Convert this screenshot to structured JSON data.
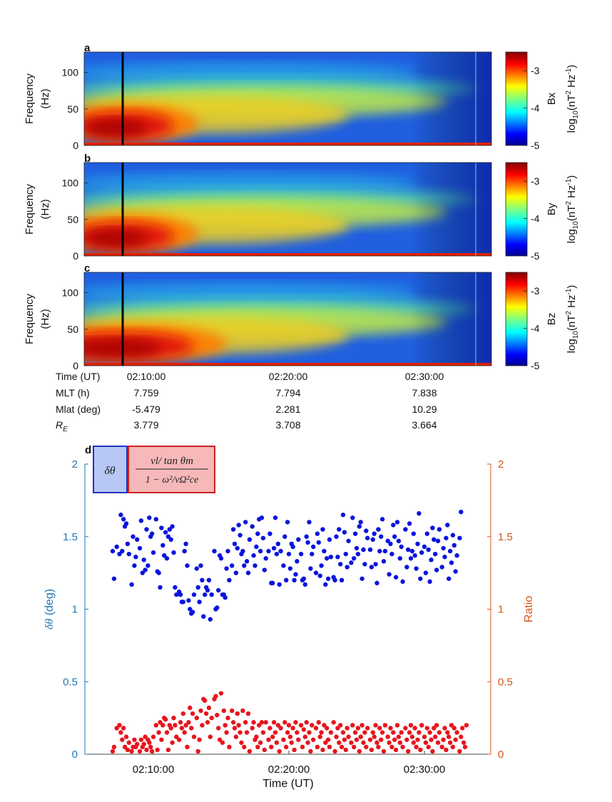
{
  "chart_data": [
    {
      "type": "heatmap",
      "panel": "a",
      "component": "Bx",
      "ylabel": [
        "Frequency",
        "(Hz)"
      ],
      "yticks": [
        0,
        50,
        100
      ],
      "ylim": [
        0,
        128
      ],
      "colorbar_label": "Bx",
      "colorbar_unit_parts": [
        "log",
        "10",
        "(nT",
        "2",
        " Hz",
        "-1",
        ")"
      ],
      "colorbar_ticks": [
        -3,
        -4,
        -5
      ],
      "colorbar_range": [
        -5,
        -2.5
      ],
      "marker_time": "02:08:00"
    },
    {
      "type": "heatmap",
      "panel": "b",
      "component": "By",
      "ylabel": [
        "Frequency",
        "(Hz)"
      ],
      "yticks": [
        0,
        50,
        100
      ],
      "ylim": [
        0,
        128
      ],
      "colorbar_label": "By",
      "colorbar_unit_parts": [
        "log",
        "10",
        "(nT",
        "2",
        " Hz",
        "-1",
        ")"
      ],
      "colorbar_ticks": [
        -3,
        -4,
        -5
      ],
      "colorbar_range": [
        -5,
        -2.5
      ],
      "marker_time": "02:08:00"
    },
    {
      "type": "heatmap",
      "panel": "c",
      "component": "Bz",
      "ylabel": [
        "Frequency",
        "(Hz)"
      ],
      "yticks": [
        0,
        50,
        100
      ],
      "ylim": [
        0,
        128
      ],
      "colorbar_label": "Bz",
      "colorbar_unit_parts": [
        "log",
        "10",
        "(nT",
        "2",
        " Hz",
        "-1",
        ")"
      ],
      "colorbar_ticks": [
        -3,
        -4,
        -5
      ],
      "colorbar_range": [
        -5,
        -2.5
      ],
      "marker_time": "02:08:00"
    },
    {
      "type": "scatter",
      "panel": "d",
      "xlabel": "Time (UT)",
      "xticks": [
        "02:10:00",
        "02:20:00",
        "02:30:00"
      ],
      "ylabel_left_parts": [
        "δθ",
        " (deg)"
      ],
      "ylabel_right": "Ratio",
      "ylim_left": [
        0,
        2
      ],
      "ylim_right": [
        0,
        2
      ],
      "yticks_left": [
        "0",
        "0.5",
        "1",
        "1.5",
        "2"
      ],
      "yticks_right": [
        "0",
        "0.5",
        "1",
        "1.5",
        "2"
      ],
      "left_color": "#1f77b4",
      "right_color": "#d95319",
      "series_left_color": "#0a14dc",
      "series_right_color": "#e8141c",
      "legend_box_left": "δθ",
      "legend_gt": ">",
      "legend_box_right": {
        "numerator": "vl/ tan θm",
        "denominator": "1 − ω²/vΩ²ce"
      },
      "time_minutes_from_0210": [
        -3.0,
        -2.9,
        -2.7,
        -2.5,
        -2.4,
        -2.3,
        -2.2,
        -2.1,
        -2.0,
        -1.9,
        -1.8,
        -1.6,
        -1.5,
        -1.4,
        -1.3,
        -1.2,
        -1.0,
        -0.9,
        -0.8,
        -0.7,
        -0.6,
        -0.5,
        -0.4,
        -0.3,
        -0.2,
        -0.1,
        0.0,
        0.2,
        0.3,
        0.4,
        0.5,
        0.6,
        0.7,
        0.8,
        0.9,
        1.0,
        1.1,
        1.2,
        1.3,
        1.4,
        1.5,
        1.6,
        1.7,
        1.9,
        2.0,
        2.1,
        2.2,
        2.3,
        2.4,
        2.5,
        2.6,
        2.7,
        2.8,
        2.9,
        3.0,
        3.2,
        3.3,
        3.4,
        3.5,
        3.6,
        3.7,
        3.8,
        3.9,
        4.0,
        4.1,
        4.2,
        4.3,
        4.5,
        4.6,
        4.7,
        4.8,
        4.9,
        5.0,
        5.1,
        5.2,
        5.3,
        5.4,
        5.5,
        5.6,
        5.8,
        5.9,
        6.0,
        6.1,
        6.2,
        6.3,
        6.4,
        6.5,
        6.6,
        6.7,
        6.8,
        6.9,
        7.0,
        7.1,
        7.3,
        7.4,
        7.5,
        7.6,
        7.7,
        7.8,
        7.9,
        8.0,
        8.1,
        8.2,
        8.3,
        8.5,
        8.6,
        8.7,
        8.8,
        8.9,
        9.0,
        9.1,
        9.2,
        9.3,
        9.4,
        9.6,
        9.7,
        9.8,
        9.9,
        10.0,
        10.1,
        10.2,
        10.3,
        10.4,
        10.5,
        10.6,
        10.7,
        10.9,
        11.0,
        11.1,
        11.2,
        11.3,
        11.4,
        11.5,
        11.6,
        11.7,
        11.8,
        12.0,
        12.1,
        12.2,
        12.3,
        12.4,
        12.5,
        12.6,
        12.7,
        12.8,
        12.9,
        13.0,
        13.1,
        13.3,
        13.4,
        13.5,
        13.6,
        13.7,
        13.8,
        13.9,
        14.0,
        14.1,
        14.2,
        14.3,
        14.4,
        14.6,
        14.7,
        14.8,
        14.9,
        15.0,
        15.1,
        15.2,
        15.3,
        15.4,
        15.5,
        15.6,
        15.7,
        15.8,
        16.0,
        16.1,
        16.2,
        16.3,
        16.4,
        16.5,
        16.6,
        16.7,
        16.8,
        16.9,
        17.0,
        17.1,
        17.3,
        17.4,
        17.5,
        17.6,
        17.7,
        17.8,
        17.9,
        18.0,
        18.1,
        18.2,
        18.3,
        18.4,
        18.6,
        18.7,
        18.8,
        18.9,
        19.0,
        19.1,
        19.2,
        19.3,
        19.4,
        19.5,
        19.6,
        19.7,
        19.8,
        20.0,
        20.1,
        20.2,
        20.3,
        20.4,
        20.5,
        20.6,
        20.7,
        20.8,
        20.9,
        21.0,
        21.1,
        21.3,
        21.4,
        21.5,
        21.6,
        21.7,
        21.8,
        21.9,
        22.0,
        22.1,
        22.2,
        22.3,
        22.4,
        22.6,
        22.7,
        22.8,
        22.9,
        23.0,
        23.1
      ],
      "delta_theta_deg": [
        1.4,
        1.21,
        1.43,
        1.38,
        1.65,
        1.4,
        1.62,
        1.57,
        1.59,
        1.45,
        1.38,
        1.17,
        1.5,
        1.3,
        1.36,
        1.48,
        1.42,
        1.61,
        1.25,
        1.34,
        1.27,
        1.55,
        1.3,
        1.63,
        1.5,
        1.52,
        1.39,
        1.62,
        1.26,
        1.25,
        1.15,
        1.56,
        1.44,
        1.37,
        1.53,
        1.35,
        1.5,
        1.55,
        1.48,
        1.57,
        1.39,
        1.15,
        1.1,
        1.12,
        1.1,
        1.05,
        1.05,
        1.4,
        1.45,
        1.3,
        1.06,
        1.0,
        0.97,
        0.98,
        1.1,
        1.28,
        1.15,
        1.05,
        1.3,
        1.2,
        0.95,
        1.1,
        1.15,
        1.13,
        1.2,
        0.93,
        1.1,
        1.4,
        1.0,
        1.01,
        1.13,
        1.37,
        1.35,
        1.1,
        1.1,
        1.08,
        1.28,
        1.4,
        1.2,
        1.3,
        1.55,
        1.45,
        1.25,
        1.42,
        1.58,
        1.51,
        1.38,
        1.4,
        1.3,
        1.6,
        1.33,
        1.25,
        1.48,
        1.57,
        1.37,
        1.3,
        1.43,
        1.52,
        1.62,
        1.4,
        1.63,
        1.49,
        1.27,
        1.35,
        1.4,
        1.52,
        1.18,
        1.18,
        1.42,
        1.63,
        1.38,
        1.45,
        1.17,
        1.4,
        1.3,
        1.5,
        1.2,
        1.6,
        1.38,
        1.28,
        1.45,
        1.43,
        1.2,
        1.24,
        1.33,
        1.48,
        1.38,
        1.2,
        1.21,
        1.17,
        1.5,
        1.46,
        1.6,
        1.28,
        1.38,
        1.43,
        1.25,
        1.52,
        1.46,
        1.23,
        1.3,
        1.55,
        1.4,
        1.17,
        1.35,
        1.21,
        1.48,
        1.36,
        1.22,
        1.2,
        1.5,
        1.36,
        1.55,
        1.31,
        1.2,
        1.65,
        1.53,
        1.38,
        1.29,
        1.47,
        1.32,
        1.63,
        1.35,
        1.52,
        1.42,
        1.38,
        1.57,
        1.6,
        1.21,
        1.41,
        1.31,
        1.54,
        1.49,
        1.41,
        1.29,
        1.48,
        1.52,
        1.31,
        1.18,
        1.55,
        1.4,
        1.5,
        1.62,
        1.33,
        1.4,
        1.47,
        1.24,
        1.45,
        1.38,
        1.58,
        1.5,
        1.22,
        1.6,
        1.47,
        1.35,
        1.43,
        1.19,
        1.55,
        1.29,
        1.41,
        1.59,
        1.35,
        1.4,
        1.52,
        1.37,
        1.28,
        1.45,
        1.66,
        1.21,
        1.39,
        1.43,
        1.25,
        1.52,
        1.41,
        1.19,
        1.34,
        1.56,
        1.48,
        1.38,
        1.27,
        1.47,
        1.55,
        1.29,
        1.42,
        1.36,
        1.49,
        1.58,
        1.21,
        1.4,
        1.32,
        1.51,
        1.44,
        1.26,
        1.37,
        1.49,
        1.67
      ],
      "ratio": [
        0.02,
        0.05,
        0.18,
        0.2,
        0.15,
        0.1,
        0.18,
        0.05,
        0.12,
        0.03,
        0.08,
        0.02,
        0.05,
        0.1,
        0.05,
        0.07,
        0.02,
        0.1,
        0.05,
        0.07,
        0.12,
        0.03,
        0.1,
        0.08,
        0.05,
        0.02,
        0.12,
        0.2,
        0.03,
        0.15,
        0.22,
        0.1,
        0.2,
        0.25,
        0.24,
        0.15,
        0.03,
        0.2,
        0.18,
        0.08,
        0.25,
        0.2,
        0.12,
        0.1,
        0.22,
        0.18,
        0.28,
        0.15,
        0.2,
        0.05,
        0.22,
        0.32,
        0.18,
        0.28,
        0.12,
        0.25,
        0.02,
        0.1,
        0.3,
        0.2,
        0.38,
        0.37,
        0.28,
        0.22,
        0.32,
        0.12,
        0.25,
        0.38,
        0.4,
        0.27,
        0.18,
        0.1,
        0.42,
        0.08,
        0.3,
        0.2,
        0.15,
        0.25,
        0.05,
        0.3,
        0.22,
        0.18,
        0.12,
        0.28,
        0.2,
        0.15,
        0.08,
        0.3,
        0.05,
        0.22,
        0.15,
        0.28,
        0.02,
        0.18,
        0.22,
        0.1,
        0.12,
        0.05,
        0.2,
        0.08,
        0.22,
        0.15,
        0.03,
        0.22,
        0.1,
        0.18,
        0.05,
        0.12,
        0.22,
        0.15,
        0.08,
        0.2,
        0.02,
        0.18,
        0.1,
        0.22,
        0.05,
        0.15,
        0.2,
        0.12,
        0.08,
        0.18,
        0.03,
        0.22,
        0.15,
        0.1,
        0.2,
        0.05,
        0.17,
        0.12,
        0.22,
        0.08,
        0.15,
        0.02,
        0.2,
        0.1,
        0.18,
        0.05,
        0.22,
        0.12,
        0.15,
        0.03,
        0.2,
        0.08,
        0.18,
        0.1,
        0.05,
        0.15,
        0.22,
        0.02,
        0.12,
        0.18,
        0.08,
        0.2,
        0.05,
        0.15,
        0.1,
        0.03,
        0.18,
        0.12,
        0.08,
        0.2,
        0.05,
        0.15,
        0.1,
        0.18,
        0.02,
        0.12,
        0.2,
        0.08,
        0.15,
        0.05,
        0.18,
        0.1,
        0.03,
        0.15,
        0.12,
        0.2,
        0.08,
        0.05,
        0.18,
        0.1,
        0.15,
        0.02,
        0.2,
        0.12,
        0.08,
        0.18,
        0.05,
        0.15,
        0.1,
        0.03,
        0.2,
        0.12,
        0.08,
        0.15,
        0.05,
        0.18,
        0.1,
        0.02,
        0.15,
        0.2,
        0.12,
        0.08,
        0.18,
        0.05,
        0.1,
        0.15,
        0.03,
        0.2,
        0.12,
        0.08,
        0.18,
        0.05,
        0.15,
        0.1,
        0.02,
        0.18,
        0.12,
        0.2,
        0.08,
        0.15,
        0.05,
        0.1,
        0.18,
        0.03,
        0.15,
        0.12,
        0.08,
        0.2,
        0.05,
        0.18,
        0.1,
        0.15,
        0.02,
        0.12,
        0.18,
        0.08,
        0.05,
        0.2,
        0.1,
        0.15,
        0.03
      ]
    }
  ],
  "time_table": {
    "row_labels": [
      "Time (UT)",
      "MLT (h)",
      "Mlat (deg)",
      "R"
    ],
    "re_subscript": "E",
    "columns": [
      {
        "time": "02:10:00",
        "mlt": "7.759",
        "mlat": "-5.479",
        "re": "3.779"
      },
      {
        "time": "02:20:00",
        "mlt": "7.794",
        "mlat": "2.281",
        "re": "3.708"
      },
      {
        "time": "02:30:00",
        "mlt": "7.838",
        "mlat": "10.29",
        "re": "3.664"
      }
    ]
  },
  "colors": {
    "left_axis": "#1f77b4",
    "right_axis": "#d95319",
    "marker_line": "#000000"
  }
}
